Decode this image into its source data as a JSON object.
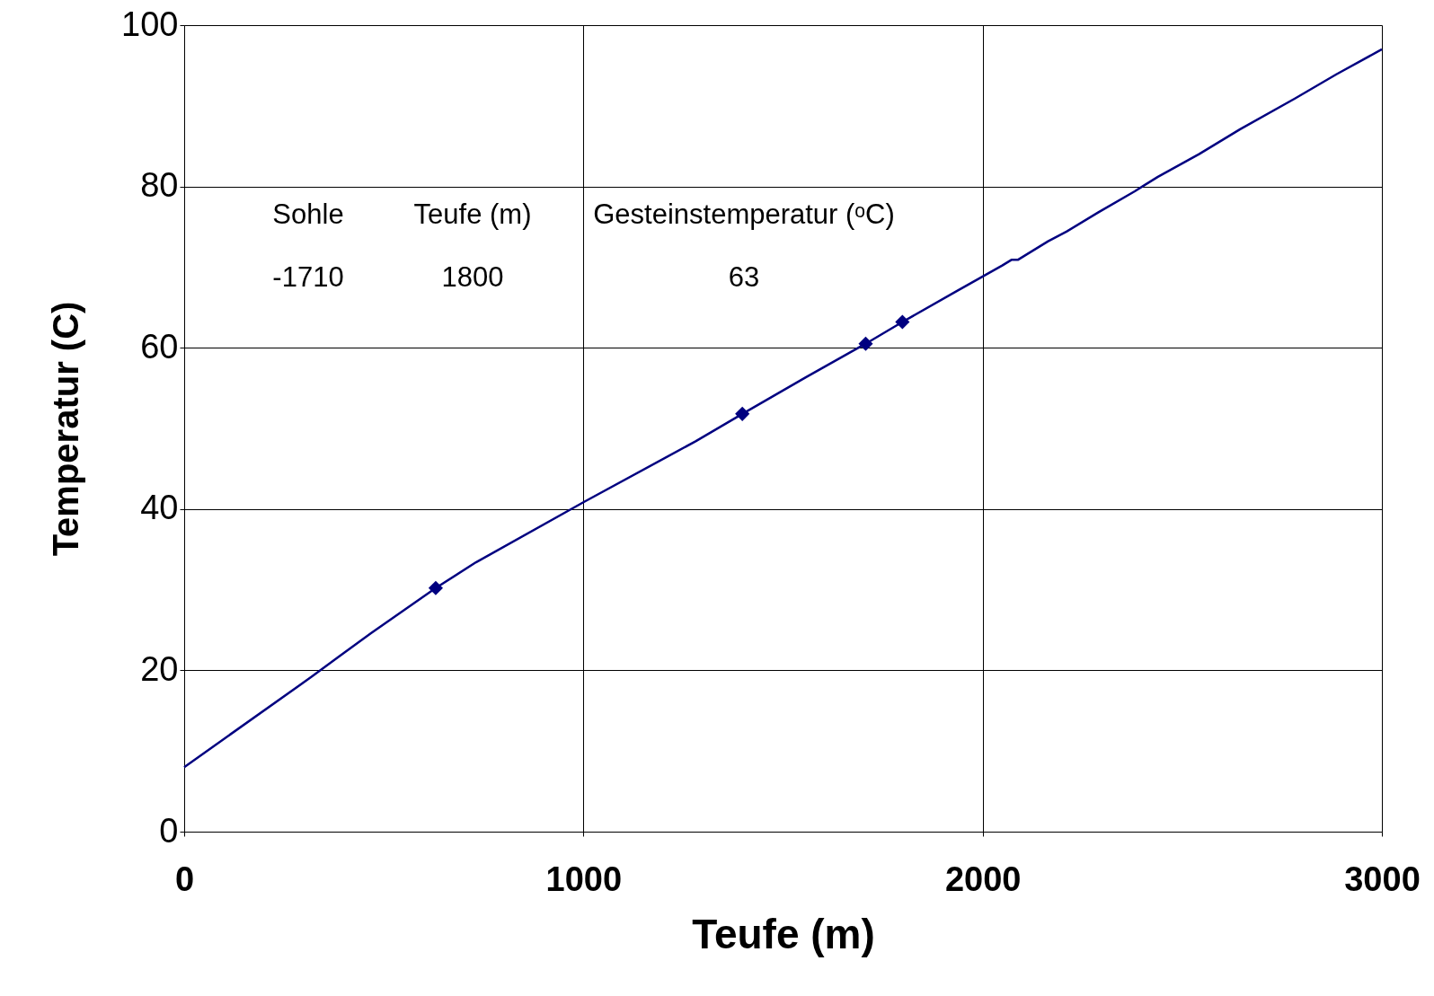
{
  "chart_data": {
    "type": "line",
    "xlabel": "Teufe (m)",
    "ylabel": "Temperatur (C)",
    "xlim": [
      0,
      3000
    ],
    "xticks": [
      0,
      1000,
      2000,
      3000
    ],
    "ylim": [
      0,
      100
    ],
    "yticks": [
      0,
      20,
      40,
      60,
      80,
      100
    ],
    "grid": true,
    "series": [
      {
        "color": "#000080",
        "marker": "none",
        "x": [
          0,
          319,
          387,
          468,
          630,
          731,
          1002,
          1281,
          1398,
          1556,
          1707,
          1799,
          1934,
          2049,
          2072,
          2088,
          2164,
          2210,
          2290,
          2381,
          2439,
          2542,
          2645,
          2782,
          2886,
          3000
        ],
        "values": [
          8.0,
          19.2,
          21.7,
          24.6,
          30.2,
          33.4,
          40.9,
          48.4,
          51.8,
          56.3,
          60.5,
          63.2,
          67.0,
          70.2,
          70.9,
          70.9,
          73.2,
          74.4,
          76.8,
          79.4,
          81.2,
          84.0,
          87.1,
          90.9,
          93.9,
          97.0
        ]
      },
      {
        "type": "scatter",
        "color": "#000080",
        "marker": "diamond",
        "x": [
          630,
          1398,
          1707,
          1799
        ],
        "values": [
          30.2,
          51.8,
          60.5,
          63.2
        ]
      }
    ],
    "annotations": [
      "Sohle",
      "Teufe (m)",
      "Gesteinstemperatur (ᵒC)",
      "-1710",
      "1800",
      "63"
    ]
  }
}
